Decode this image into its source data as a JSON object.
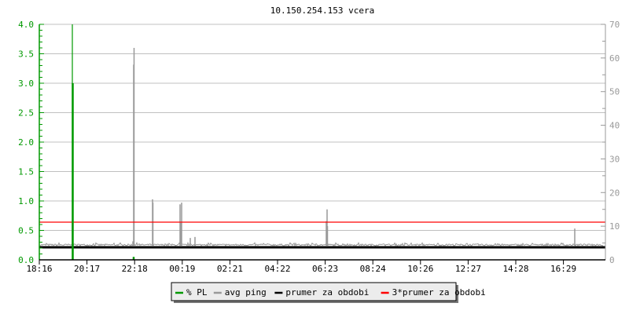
{
  "chart_data": {
    "type": "line",
    "title": "10.150.254.153 vcera",
    "x_ticks": [
      "18:16",
      "20:17",
      "22:18",
      "00:19",
      "02:21",
      "04:22",
      "06:23",
      "08:24",
      "10:26",
      "12:27",
      "14:28",
      "16:29"
    ],
    "x_range": [
      "18:16",
      "18:16 (+1 day)"
    ],
    "y_left": {
      "range": [
        0,
        4.0
      ],
      "ticks": [
        "0.0",
        "0.5",
        "1.0",
        "1.5",
        "2.0",
        "2.5",
        "3.0",
        "3.5",
        "4.0"
      ],
      "color": "#009900"
    },
    "y_right": {
      "range": [
        0,
        70
      ],
      "ticks": [
        "0",
        "10",
        "20",
        "30",
        "40",
        "50",
        "60",
        "70"
      ],
      "color": "#999999"
    },
    "grid": true,
    "legend_placement": "bottom-center",
    "series": [
      {
        "name": "% PL",
        "axis": "left",
        "color": "#009900",
        "style": "bars",
        "points": [
          [
            "19:40",
            4.0
          ],
          [
            "19:41",
            3.0
          ],
          [
            "22:16",
            0.05
          ]
        ]
      },
      {
        "name": "avg ping",
        "axis": "right",
        "color": "#999999",
        "style": "bars",
        "baseline_ms": 4.2,
        "points": [
          [
            "19:40",
            11.5
          ],
          [
            "22:14",
            5.5
          ],
          [
            "22:16",
            58
          ],
          [
            "22:17",
            63
          ],
          [
            "23:04",
            18
          ],
          [
            "23:05",
            17
          ],
          [
            "00:14",
            16.5
          ],
          [
            "00:16",
            11
          ],
          [
            "00:18",
            17
          ],
          [
            "00:40",
            6.5
          ],
          [
            "00:52",
            6.8
          ],
          [
            "06:26",
            11.5
          ],
          [
            "06:28",
            15
          ],
          [
            "06:29",
            10
          ],
          [
            "16:58",
            9.3
          ]
        ]
      },
      {
        "name": "prumer za obdobi",
        "axis": "right",
        "color": "#000000",
        "style": "hline",
        "value": 3.73
      },
      {
        "name": "3*prumer za obdobi",
        "axis": "right",
        "color": "#ff0000",
        "style": "hline",
        "value": 11.2
      }
    ]
  }
}
